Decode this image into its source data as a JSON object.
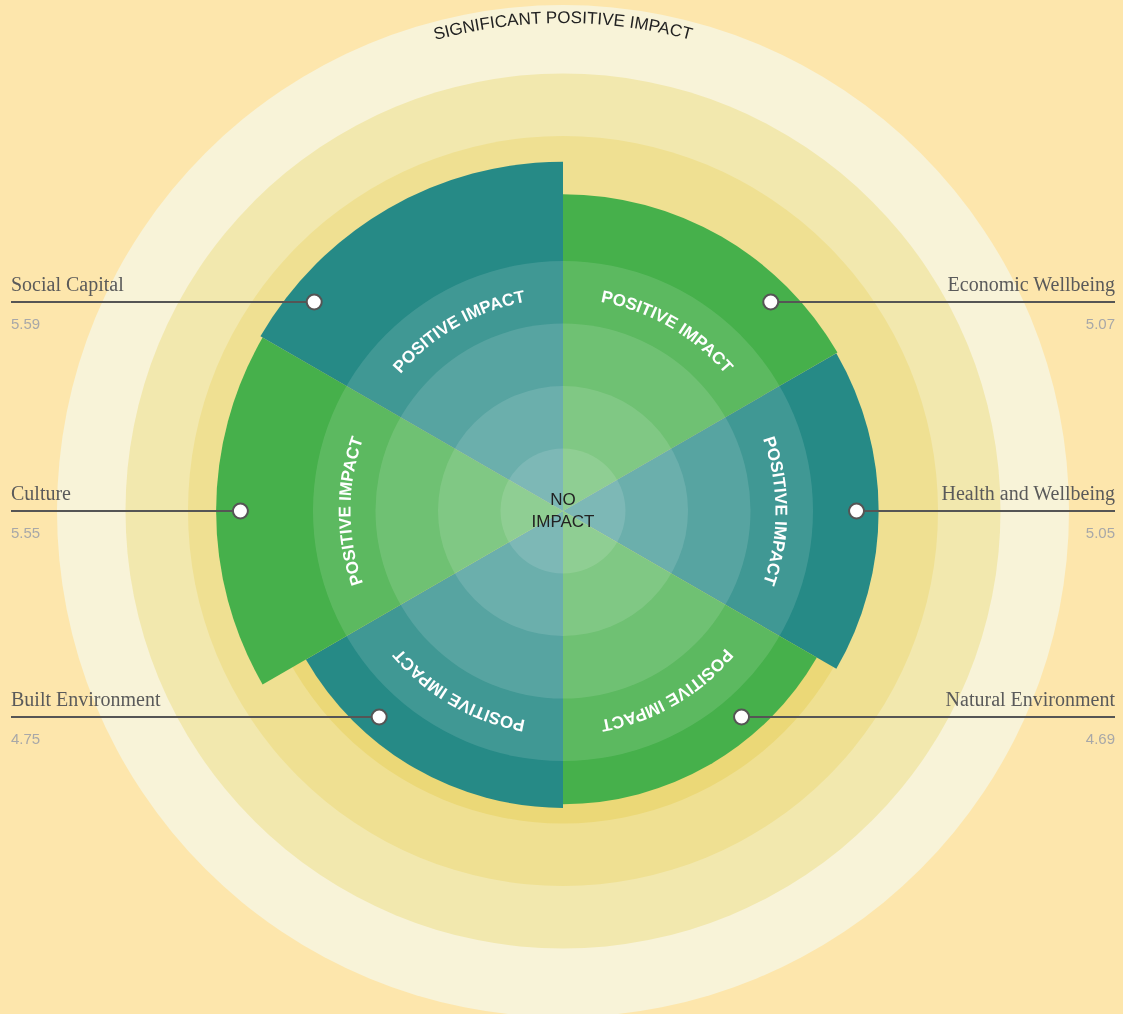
{
  "chart_data": {
    "type": "other",
    "categories": [
      "Economic Wellbeing",
      "Health and Wellbeing",
      "Natural Environment",
      "Built Environment",
      "Culture",
      "Social Capital"
    ],
    "values": [
      5.07,
      5.05,
      4.69,
      4.75,
      5.55,
      5.59
    ],
    "colors": [
      "#46b04b",
      "#268a86",
      "#46b04b",
      "#268a86",
      "#46b04b",
      "#268a86"
    ],
    "data_labels": true,
    "annotations": [
      "NO IMPACT",
      "SIGNIFICANT POSITIVE IMPACT",
      "POSITIVE IMPACT"
    ]
  }
}
